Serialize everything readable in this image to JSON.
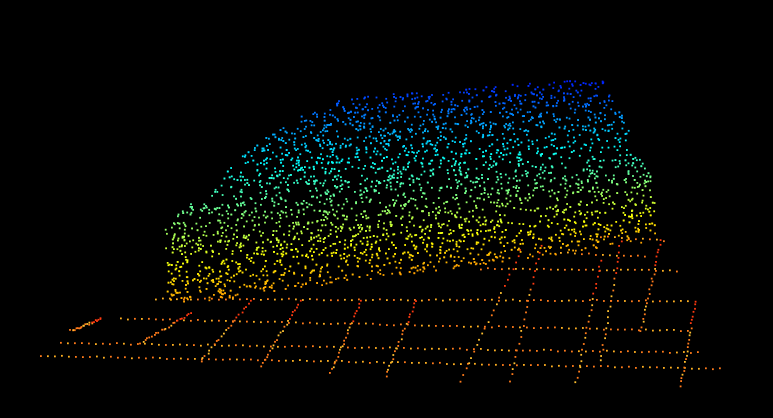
{
  "scene": {
    "subject": "car-point-cloud",
    "background_color": "#000000",
    "colormap": "jet",
    "colors": {
      "roof": "#1a2cff",
      "upper_body": "#22d3e6",
      "mid_body": "#22dd44",
      "lower_body": "#f2e21a",
      "ground": "#ff7a1a",
      "ground_far": "#ff3a10"
    },
    "ground_grid": true
  }
}
